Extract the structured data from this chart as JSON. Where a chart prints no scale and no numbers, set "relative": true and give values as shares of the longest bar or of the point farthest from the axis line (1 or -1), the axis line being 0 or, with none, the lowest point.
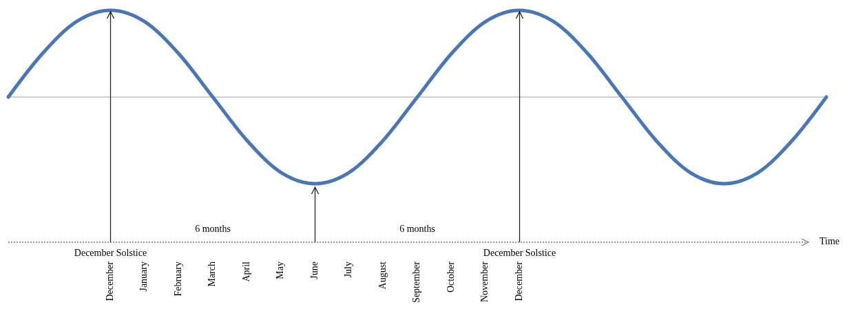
{
  "chart_data": {
    "type": "line",
    "relative": true,
    "xlabel": "Time",
    "categories": [
      null,
      null,
      null,
      "December",
      "January",
      "February",
      "March",
      "April",
      "May",
      "June",
      "July",
      "August",
      "September",
      "October",
      "November",
      "December",
      null,
      null,
      null,
      null,
      null,
      null,
      null,
      null,
      null
    ],
    "series": [
      {
        "color": "#4a76b8",
        "values": [
          0,
          0.5,
          0.87,
          1,
          0.87,
          0.5,
          0,
          -0.5,
          -0.87,
          -1,
          -0.87,
          -0.5,
          0,
          0.5,
          0.87,
          1,
          0.87,
          0.5,
          0,
          -0.5,
          -0.87,
          -1,
          -0.87,
          -0.5,
          0
        ]
      }
    ],
    "annotations": [
      "December Solstice",
      "6 months",
      "6 months",
      "December Solstice"
    ]
  }
}
